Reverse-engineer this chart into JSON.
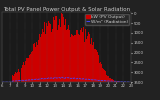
{
  "title": "Total PV Panel Power Output & Solar Radiation",
  "bg_color": "#222222",
  "plot_bg": "#1a1a1a",
  "grid_color": "#555555",
  "bar_color": "#cc0000",
  "bar_edge_color": "#cc0000",
  "line_color": "#4444ff",
  "legend_labels": [
    "kW (PV Output)",
    "W/m² (Radiation)"
  ],
  "legend_colors": [
    "#cc0000",
    "#4444ff"
  ],
  "n_bars": 144,
  "pv_peak": 1.0,
  "rad_peak": 0.06,
  "ylim": [
    0,
    1.0
  ],
  "ylabel_right": [
    "3500",
    "3000",
    "2500",
    "2000",
    "1500",
    "1000",
    "500",
    "0"
  ],
  "title_fontsize": 4.0,
  "tick_fontsize": 2.8,
  "legend_fontsize": 3.2,
  "text_color": "#cccccc"
}
